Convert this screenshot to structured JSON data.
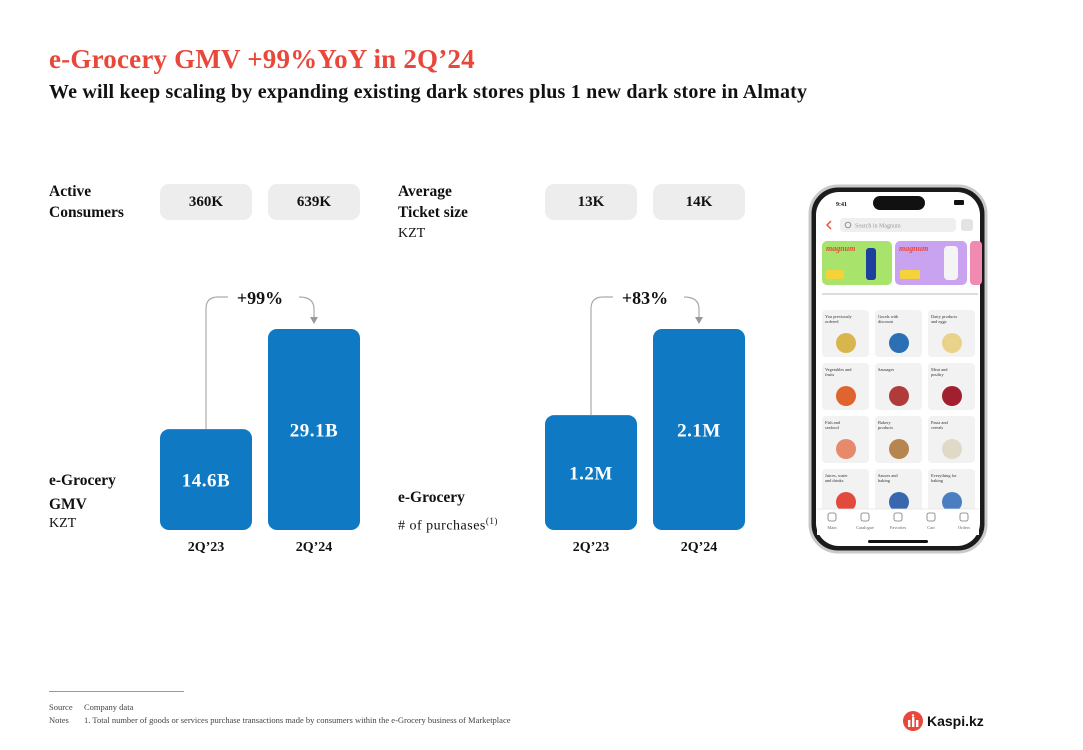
{
  "header": {
    "title": "e-Grocery GMV +99%YoY in 2Q’24",
    "subtitle": "We will keep scaling by expanding existing dark stores plus 1 new dark store in Almaty"
  },
  "left_panel": {
    "kpi_label_line1": "Active",
    "kpi_label_line2": "Consumers",
    "kpi_values": [
      "360K",
      "639K"
    ],
    "chart_label_line1": "e-Grocery",
    "chart_label_line2": "GMV",
    "chart_unit": "KZT",
    "growth": "+99%"
  },
  "right_panel": {
    "kpi_label_line1": "Average",
    "kpi_label_line2": "Ticket size",
    "kpi_unit": "KZT",
    "kpi_values": [
      "13K",
      "14K"
    ],
    "chart_label_line1": "e-Grocery",
    "chart_label_line2": "# of purchases",
    "chart_label_sup": "(1)",
    "growth": "+83%"
  },
  "chart_data": [
    {
      "type": "bar",
      "categories": [
        "2Q’23",
        "2Q’24"
      ],
      "values": [
        14.6,
        29.1
      ],
      "data_labels": [
        "14.6B",
        "29.1B"
      ],
      "units": "B KZT",
      "title": "",
      "annotation": "+99%"
    },
    {
      "type": "bar",
      "categories": [
        "2Q’23",
        "2Q’24"
      ],
      "values": [
        1.2,
        2.1
      ],
      "data_labels": [
        "1.2M",
        "2.1M"
      ],
      "units": "M purchases",
      "title": "",
      "annotation": "+83%"
    }
  ],
  "phone": {
    "time": "9:41",
    "search_placeholder": "Search in Magnum",
    "promo_brand": "magnum",
    "tiles": [
      "You previously ordered",
      "Goods with discount",
      "Dairy products and eggs",
      "Vegetables and fruits",
      "Sausages",
      "Meat and poultry",
      "Fish and seafood",
      "Bakery products",
      "Pasta and cereals",
      "Juices, water and drinks",
      "Sauces and baking",
      "Everything for baking"
    ],
    "nav": [
      "Main",
      "Catalogue",
      "Favorites",
      "Cart",
      "Orders"
    ]
  },
  "footer": {
    "source_label": "Source",
    "source_text": "Company data",
    "notes_label": "Notes",
    "notes_text": "1. Total number of goods or services purchase transactions made by consumers within the e-Grocery business of Marketplace"
  },
  "logo": {
    "text": "Kaspi.kz"
  },
  "colors": {
    "accent": "#e8473a",
    "bar": "#0f79c3",
    "pill": "#ededed"
  }
}
